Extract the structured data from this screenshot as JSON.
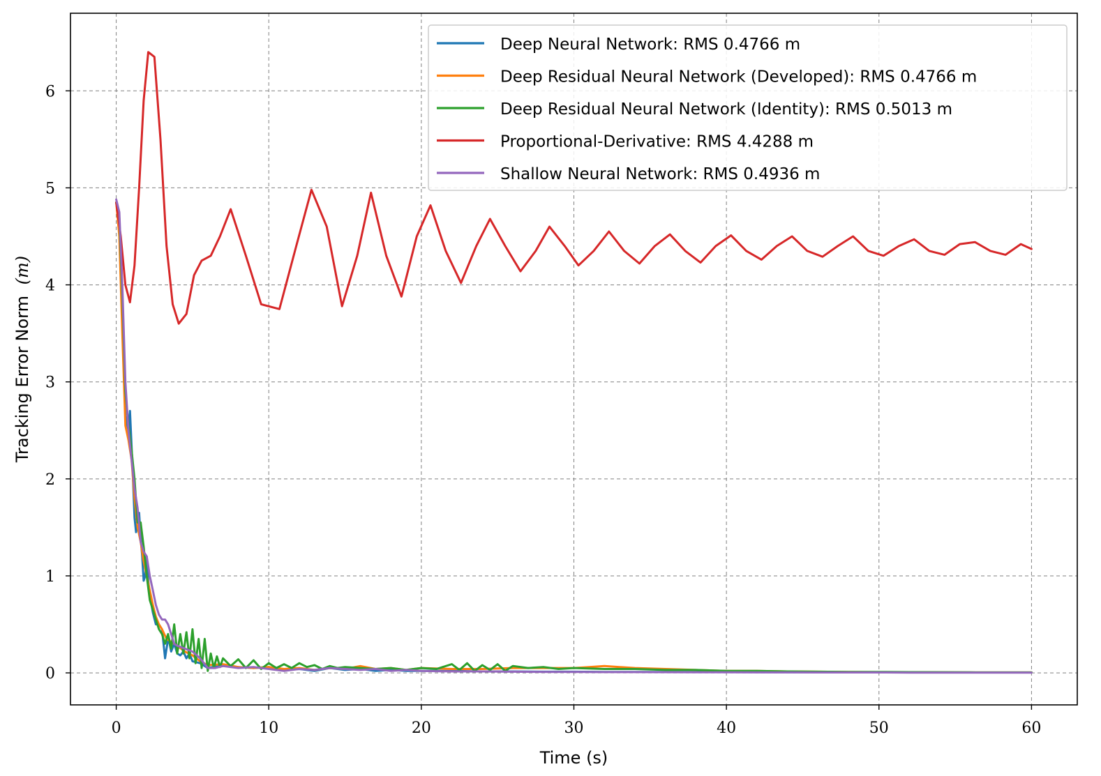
{
  "chart_data": {
    "type": "line",
    "title": "",
    "xlabel": "Time (s)",
    "ylabel": "Tracking Error Norm",
    "ylabel_math": "(m)",
    "xlim": [
      -3,
      63
    ],
    "ylim": [
      -0.33,
      6.8
    ],
    "xticks": [
      0,
      10,
      20,
      30,
      40,
      50,
      60
    ],
    "yticks": [
      0,
      1,
      2,
      3,
      4,
      5,
      6
    ],
    "grid": true,
    "legend_position": "top-right",
    "series": [
      {
        "name": "Deep Neural Network: RMS 0.4766 m",
        "color": "#1f77b4",
        "x": [
          0,
          0.2,
          0.4,
          0.6,
          0.8,
          0.9,
          1.0,
          1.1,
          1.2,
          1.3,
          1.4,
          1.5,
          1.6,
          1.7,
          1.8,
          1.9,
          2.0,
          2.1,
          2.2,
          2.4,
          2.6,
          2.8,
          3.0,
          3.1,
          3.2,
          3.3,
          3.4,
          3.5,
          3.6,
          3.8,
          4.0,
          4.2,
          4.4,
          4.6,
          4.8,
          5.0,
          5.5,
          6.0,
          7,
          8,
          9,
          10,
          11,
          12,
          13,
          14,
          15,
          16,
          17,
          18,
          19,
          20,
          22,
          24,
          26,
          28,
          30,
          32,
          34,
          36,
          38,
          40,
          42,
          44,
          46,
          48,
          50,
          52,
          54,
          56,
          58,
          60
        ],
        "y": [
          4.85,
          4.6,
          3.7,
          2.65,
          2.5,
          2.7,
          2.35,
          2.0,
          1.6,
          1.45,
          1.55,
          1.65,
          1.4,
          1.2,
          0.95,
          1.0,
          1.2,
          0.95,
          0.8,
          0.62,
          0.5,
          0.5,
          0.45,
          0.3,
          0.15,
          0.25,
          0.35,
          0.3,
          0.22,
          0.3,
          0.2,
          0.18,
          0.22,
          0.15,
          0.2,
          0.12,
          0.1,
          0.05,
          0.08,
          0.06,
          0.05,
          0.06,
          0.03,
          0.04,
          0.02,
          0.05,
          0.03,
          0.04,
          0.02,
          0.03,
          0.02,
          0.02,
          0.02,
          0.015,
          0.015,
          0.012,
          0.012,
          0.01,
          0.01,
          0.01,
          0.008,
          0.008,
          0.007,
          0.006,
          0.006,
          0.005,
          0.005,
          0.005,
          0.004,
          0.004,
          0.004,
          0.004
        ]
      },
      {
        "name": "Deep Residual Neural Network (Developed): RMS 0.4766 m",
        "color": "#ff7f0e",
        "x": [
          0,
          0.2,
          0.4,
          0.6,
          0.8,
          1.0,
          1.2,
          1.4,
          1.6,
          1.8,
          2.0,
          2.2,
          2.4,
          2.6,
          2.8,
          3.0,
          3.3,
          3.6,
          4.0,
          4.5,
          5.0,
          5.5,
          6.0,
          7,
          8,
          9,
          10,
          11,
          12,
          13,
          14,
          15,
          16,
          17,
          18,
          19,
          20,
          22,
          24,
          26,
          28,
          30,
          31,
          32,
          34,
          36,
          38,
          40,
          42,
          44,
          46,
          48,
          50,
          52,
          54,
          56,
          58,
          60
        ],
        "y": [
          4.85,
          4.5,
          3.5,
          2.55,
          2.4,
          2.2,
          1.8,
          1.5,
          1.35,
          1.15,
          1.0,
          0.85,
          0.7,
          0.58,
          0.5,
          0.45,
          0.35,
          0.32,
          0.28,
          0.22,
          0.18,
          0.12,
          0.08,
          0.09,
          0.06,
          0.05,
          0.06,
          0.04,
          0.05,
          0.03,
          0.05,
          0.04,
          0.07,
          0.04,
          0.05,
          0.03,
          0.05,
          0.04,
          0.04,
          0.05,
          0.05,
          0.05,
          0.06,
          0.07,
          0.05,
          0.04,
          0.03,
          0.02,
          0.02,
          0.015,
          0.012,
          0.01,
          0.008,
          0.007,
          0.006,
          0.005,
          0.005,
          0.005
        ]
      },
      {
        "name": "Deep Residual Neural Network (Identity): RMS 0.5013 m",
        "color": "#2ca02c",
        "x": [
          0,
          0.2,
          0.4,
          0.6,
          0.8,
          1.0,
          1.2,
          1.4,
          1.6,
          1.8,
          2.0,
          2.2,
          2.4,
          2.6,
          2.8,
          3.0,
          3.2,
          3.4,
          3.6,
          3.8,
          4.0,
          4.2,
          4.4,
          4.6,
          4.8,
          5.0,
          5.2,
          5.4,
          5.6,
          5.8,
          6.0,
          6.2,
          6.4,
          6.6,
          6.8,
          7.0,
          7.5,
          8.0,
          8.5,
          9.0,
          9.5,
          10,
          10.5,
          11,
          11.5,
          12,
          12.5,
          13,
          13.5,
          14,
          14.5,
          15,
          16,
          17,
          18,
          19,
          20,
          21,
          22,
          22.5,
          23,
          23.5,
          24,
          24.5,
          25,
          25.5,
          26,
          27,
          28,
          29,
          30,
          32,
          34,
          36,
          38,
          40,
          42,
          44,
          46,
          48,
          50,
          52,
          54,
          56,
          58,
          60
        ],
        "y": [
          4.85,
          4.7,
          3.9,
          2.9,
          2.55,
          2.3,
          2.0,
          1.55,
          1.55,
          1.3,
          1.0,
          0.75,
          0.65,
          0.55,
          0.45,
          0.4,
          0.3,
          0.4,
          0.25,
          0.5,
          0.2,
          0.4,
          0.2,
          0.42,
          0.15,
          0.45,
          0.1,
          0.35,
          0.05,
          0.35,
          0.02,
          0.2,
          0.05,
          0.17,
          0.06,
          0.15,
          0.07,
          0.14,
          0.05,
          0.13,
          0.04,
          0.1,
          0.05,
          0.09,
          0.05,
          0.1,
          0.06,
          0.08,
          0.04,
          0.07,
          0.05,
          0.06,
          0.05,
          0.04,
          0.05,
          0.03,
          0.05,
          0.04,
          0.09,
          0.03,
          0.1,
          0.02,
          0.08,
          0.03,
          0.09,
          0.02,
          0.07,
          0.05,
          0.06,
          0.04,
          0.05,
          0.04,
          0.04,
          0.03,
          0.03,
          0.02,
          0.02,
          0.015,
          0.012,
          0.01,
          0.01,
          0.008,
          0.007,
          0.006,
          0.005,
          0.005
        ]
      },
      {
        "name": "Proportional-Derivative: RMS 4.4288 m",
        "color": "#d62728",
        "x": [
          0,
          0.3,
          0.6,
          0.9,
          1.2,
          1.5,
          1.8,
          2.1,
          2.5,
          2.9,
          3.3,
          3.7,
          4.1,
          4.6,
          5.1,
          5.6,
          6.2,
          6.8,
          7.5,
          8.5,
          9.5,
          10.7,
          11.8,
          12.8,
          13.8,
          14.8,
          15.8,
          16.7,
          17.7,
          18.7,
          19.7,
          20.6,
          21.6,
          22.6,
          23.6,
          24.5,
          25.5,
          26.5,
          27.5,
          28.4,
          29.4,
          30.3,
          31.3,
          32.3,
          33.3,
          34.3,
          35.3,
          36.3,
          37.3,
          38.3,
          39.3,
          40.3,
          41.3,
          42.3,
          43.3,
          44.3,
          45.3,
          46.3,
          47.3,
          48.3,
          49.3,
          50.3,
          51.3,
          52.3,
          53.3,
          54.3,
          55.3,
          56.3,
          57.3,
          58.3,
          59.3,
          60
        ],
        "y": [
          4.85,
          4.5,
          4.0,
          3.82,
          4.2,
          5.0,
          5.9,
          6.4,
          6.35,
          5.5,
          4.4,
          3.8,
          3.6,
          3.7,
          4.1,
          4.25,
          4.3,
          4.5,
          4.78,
          4.3,
          3.8,
          3.75,
          4.4,
          4.98,
          4.6,
          3.78,
          4.3,
          4.95,
          4.3,
          3.88,
          4.5,
          4.82,
          4.35,
          4.02,
          4.4,
          4.68,
          4.4,
          4.14,
          4.35,
          4.6,
          4.4,
          4.2,
          4.35,
          4.55,
          4.35,
          4.22,
          4.4,
          4.52,
          4.35,
          4.23,
          4.4,
          4.51,
          4.35,
          4.26,
          4.4,
          4.5,
          4.35,
          4.29,
          4.4,
          4.5,
          4.35,
          4.3,
          4.4,
          4.47,
          4.35,
          4.31,
          4.42,
          4.44,
          4.35,
          4.31,
          4.42,
          4.37
        ]
      },
      {
        "name": "Shallow Neural Network: RMS 0.4936 m",
        "color": "#9467bd",
        "x": [
          0,
          0.2,
          0.4,
          0.6,
          0.8,
          1.0,
          1.2,
          1.4,
          1.6,
          1.8,
          2.0,
          2.2,
          2.4,
          2.6,
          2.8,
          3.0,
          3.2,
          3.4,
          3.6,
          3.8,
          4.0,
          4.5,
          5.0,
          5.5,
          6.0,
          6.5,
          7,
          8,
          9,
          10,
          11,
          12,
          13,
          14,
          15,
          16,
          17,
          18,
          19,
          20,
          22,
          24,
          26,
          28,
          30,
          32,
          34,
          36,
          38,
          40,
          42,
          44,
          46,
          48,
          50,
          52,
          54,
          56,
          58,
          60
        ],
        "y": [
          4.88,
          4.75,
          4.0,
          3.0,
          2.5,
          2.2,
          1.9,
          1.7,
          1.35,
          1.25,
          1.2,
          1.0,
          0.85,
          0.7,
          0.6,
          0.55,
          0.55,
          0.5,
          0.4,
          0.3,
          0.28,
          0.25,
          0.22,
          0.15,
          0.05,
          0.05,
          0.07,
          0.05,
          0.06,
          0.04,
          0.02,
          0.04,
          0.03,
          0.05,
          0.04,
          0.03,
          0.04,
          0.02,
          0.03,
          0.02,
          0.015,
          0.015,
          0.012,
          0.01,
          0.01,
          0.008,
          0.008,
          0.007,
          0.006,
          0.006,
          0.005,
          0.005,
          0.004,
          0.004,
          0.004,
          0.003,
          0.003,
          0.003,
          0.003,
          0.003
        ]
      }
    ]
  }
}
